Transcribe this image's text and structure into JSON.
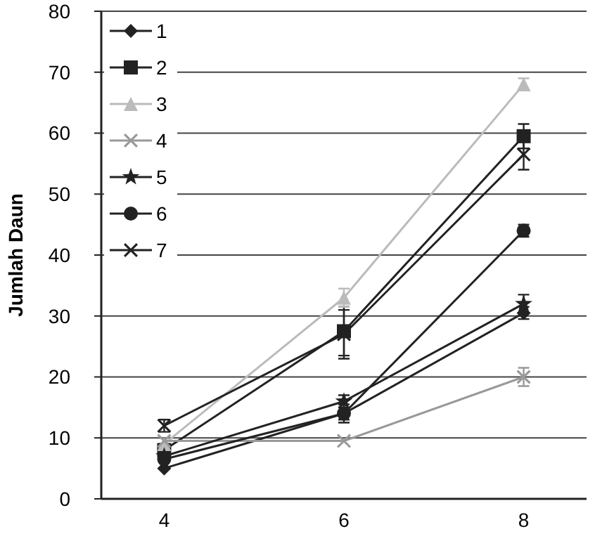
{
  "chart_data": {
    "type": "line",
    "ylabel": "Jumlah Daun",
    "categories": [
      "4",
      "6",
      "8"
    ],
    "ylim": [
      0,
      80
    ],
    "yticks": [
      0,
      10,
      20,
      30,
      40,
      50,
      60,
      70,
      80
    ],
    "grid": "y",
    "legend": "top left",
    "line_style": "solid",
    "series": [
      {
        "name": "1",
        "color": "#222222",
        "marker": "diamond",
        "values": [
          5,
          14,
          30.5
        ],
        "errors": [
          null,
          1,
          1
        ]
      },
      {
        "name": "2",
        "color": "#222222",
        "marker": "square",
        "values": [
          8,
          27.5,
          59.5
        ],
        "errors": [
          1,
          4,
          2
        ]
      },
      {
        "name": "3",
        "color": "#bbbbbb",
        "marker": "triangle",
        "values": [
          9,
          33,
          68
        ],
        "errors": [
          null,
          1.5,
          1
        ]
      },
      {
        "name": "4",
        "color": "#999999",
        "marker": "cross",
        "values": [
          9.5,
          9.5,
          20
        ],
        "errors": [
          null,
          null,
          1.5
        ]
      },
      {
        "name": "5",
        "color": "#222222",
        "marker": "star",
        "values": [
          7,
          16,
          32
        ],
        "errors": [
          null,
          1,
          1.5
        ]
      },
      {
        "name": "6",
        "color": "#222222",
        "marker": "circle",
        "values": [
          6.5,
          14,
          44
        ],
        "errors": [
          null,
          1.5,
          1
        ]
      },
      {
        "name": "7",
        "color": "#222222",
        "marker": "cross",
        "values": [
          12,
          27,
          56.5
        ],
        "errors": [
          1,
          4,
          2.5
        ]
      }
    ]
  }
}
